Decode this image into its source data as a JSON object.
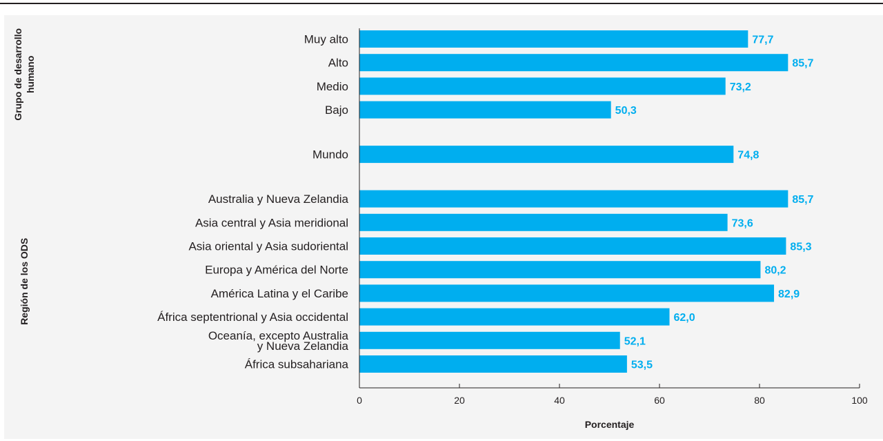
{
  "chart_data": {
    "type": "bar",
    "orientation": "horizontal",
    "xlabel": "Porcentaje",
    "xlim": [
      0,
      100
    ],
    "xticks": [
      "0",
      "20",
      "40",
      "60",
      "80",
      "100"
    ],
    "bar_color": "#00aeef",
    "label_color": "#00aeef",
    "groups": [
      {
        "label_lines": [
          "Grupo de desarrollo",
          "humano"
        ],
        "rows": [
          {
            "label": [
              "Muy alto"
            ],
            "value": 77.7,
            "display": "77,7"
          },
          {
            "label": [
              "Alto"
            ],
            "value": 85.7,
            "display": "85,7"
          },
          {
            "label": [
              "Medio"
            ],
            "value": 73.2,
            "display": "73,2"
          },
          {
            "label": [
              "Bajo"
            ],
            "value": 50.3,
            "display": "50,3"
          }
        ]
      },
      {
        "label_lines": [],
        "rows": [
          {
            "label": [
              "Mundo"
            ],
            "value": 74.8,
            "display": "74,8"
          }
        ]
      },
      {
        "label_lines": [
          "Región de los ODS"
        ],
        "rows": [
          {
            "label": [
              "Australia y Nueva Zelandia"
            ],
            "value": 85.7,
            "display": "85,7"
          },
          {
            "label": [
              "Asia central y Asia meridional"
            ],
            "value": 73.6,
            "display": "73,6"
          },
          {
            "label": [
              "Asia oriental y Asia sudoriental"
            ],
            "value": 85.3,
            "display": "85,3"
          },
          {
            "label": [
              "Europa y América del Norte"
            ],
            "value": 80.2,
            "display": "80,2"
          },
          {
            "label": [
              "América Latina y el Caribe"
            ],
            "value": 82.9,
            "display": "82,9"
          },
          {
            "label": [
              "África septentrional y Asia occidental"
            ],
            "value": 62.0,
            "display": "62,0"
          },
          {
            "label": [
              "Oceanía, excepto Australia",
              "y Nueva Zelandia"
            ],
            "value": 52.1,
            "display": "52,1"
          },
          {
            "label": [
              "África subsahariana"
            ],
            "value": 53.5,
            "display": "53,5"
          }
        ]
      }
    ]
  }
}
